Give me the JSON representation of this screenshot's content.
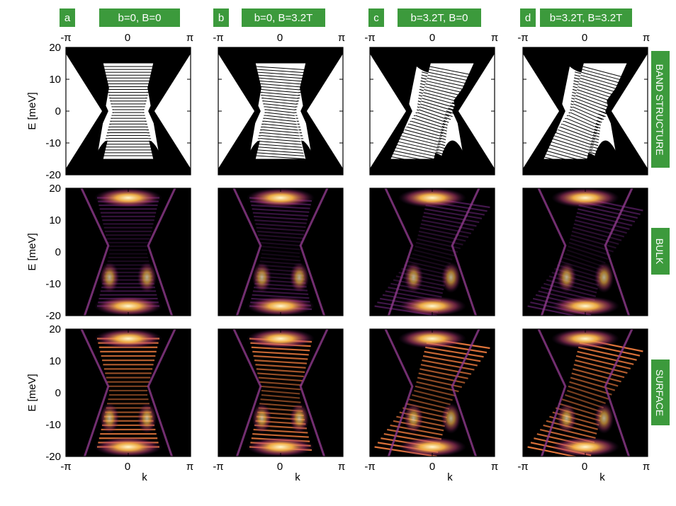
{
  "figure": {
    "panel_letters": [
      "a",
      "b",
      "c",
      "d"
    ],
    "panel_titles": [
      "b=0, B=0",
      "b=0, B=3.2T",
      "b=3.2T, B=0",
      "b=3.2T, B=3.2T"
    ],
    "row_labels": [
      "BAND STRUCTURE",
      "BULK",
      "SURFACE"
    ],
    "ylabel": "E [meV]",
    "xlabel": "k",
    "x_ticks": [
      "-π",
      "0",
      "π"
    ],
    "y_ticks": [
      "20",
      "10",
      "0",
      "-10",
      "-20"
    ],
    "colors": {
      "tag_green": "#3c9a3c",
      "tag_text": "#ffffff",
      "band_lines": "#000000",
      "heat_low": "#000000",
      "heat_mid": "#7b2a8c",
      "heat_high": "#f4a83a",
      "heat_peak": "#fff6c8"
    }
  },
  "chart_data": [
    {
      "type": "line",
      "panel": "a",
      "row": "BAND STRUCTURE",
      "title": "b=0, B=0",
      "xlabel": "",
      "ylabel": "E [meV]",
      "xlim": [
        -3.14159,
        3.14159
      ],
      "ylim": [
        -20,
        20
      ],
      "x_tick_labels": [
        "-π",
        "0",
        "π"
      ],
      "y_tick_labels": [
        "-20",
        "-10",
        "0",
        "10",
        "20"
      ],
      "gap_meV": [
        -1,
        1
      ],
      "valence_band_max_meV": -13,
      "conduction_band_min_meV": 13,
      "grid": false
    },
    {
      "type": "line",
      "panel": "b",
      "row": "BAND STRUCTURE",
      "title": "b=0, B=3.2T",
      "ylabel": "",
      "xlim": [
        -3.14159,
        3.14159
      ],
      "ylim": [
        -20,
        20
      ],
      "x_tick_labels": [
        "-π",
        "0",
        "π"
      ],
      "grid": false
    },
    {
      "type": "line",
      "panel": "c",
      "row": "BAND STRUCTURE",
      "title": "b=3.2T, B=0",
      "ylabel": "",
      "xlim": [
        -3.14159,
        3.14159
      ],
      "ylim": [
        -20,
        20
      ],
      "x_tick_labels": [
        "-π",
        "0",
        "π"
      ],
      "grid": false
    },
    {
      "type": "line",
      "panel": "d",
      "row": "BAND STRUCTURE",
      "title": "b=3.2T, B=3.2T",
      "ylabel": "",
      "xlim": [
        -3.14159,
        3.14159
      ],
      "ylim": [
        -20,
        20
      ],
      "x_tick_labels": [
        "-π",
        "0",
        "π"
      ],
      "grid": false
    },
    {
      "type": "heatmap",
      "panel": "a",
      "row": "BULK",
      "ylabel": "E [meV]",
      "xlim": [
        -3.14159,
        3.14159
      ],
      "ylim": [
        -20,
        20
      ]
    },
    {
      "type": "heatmap",
      "panel": "b",
      "row": "BULK",
      "ylabel": "",
      "xlim": [
        -3.14159,
        3.14159
      ],
      "ylim": [
        -20,
        20
      ]
    },
    {
      "type": "heatmap",
      "panel": "c",
      "row": "BULK",
      "ylabel": "",
      "xlim": [
        -3.14159,
        3.14159
      ],
      "ylim": [
        -20,
        20
      ]
    },
    {
      "type": "heatmap",
      "panel": "d",
      "row": "BULK",
      "ylabel": "",
      "xlim": [
        -3.14159,
        3.14159
      ],
      "ylim": [
        -20,
        20
      ]
    },
    {
      "type": "heatmap",
      "panel": "a",
      "row": "SURFACE",
      "ylabel": "E [meV]",
      "xlabel": "k",
      "xlim": [
        -3.14159,
        3.14159
      ],
      "ylim": [
        -20,
        20
      ]
    },
    {
      "type": "heatmap",
      "panel": "b",
      "row": "SURFACE",
      "ylabel": "",
      "xlabel": "k",
      "xlim": [
        -3.14159,
        3.14159
      ],
      "ylim": [
        -20,
        20
      ]
    },
    {
      "type": "heatmap",
      "panel": "c",
      "row": "SURFACE",
      "ylabel": "",
      "xlabel": "k",
      "xlim": [
        -3.14159,
        3.14159
      ],
      "ylim": [
        -20,
        20
      ]
    },
    {
      "type": "heatmap",
      "panel": "d",
      "row": "SURFACE",
      "ylabel": "",
      "xlabel": "k",
      "xlim": [
        -3.14159,
        3.14159
      ],
      "ylim": [
        -20,
        20
      ]
    }
  ]
}
